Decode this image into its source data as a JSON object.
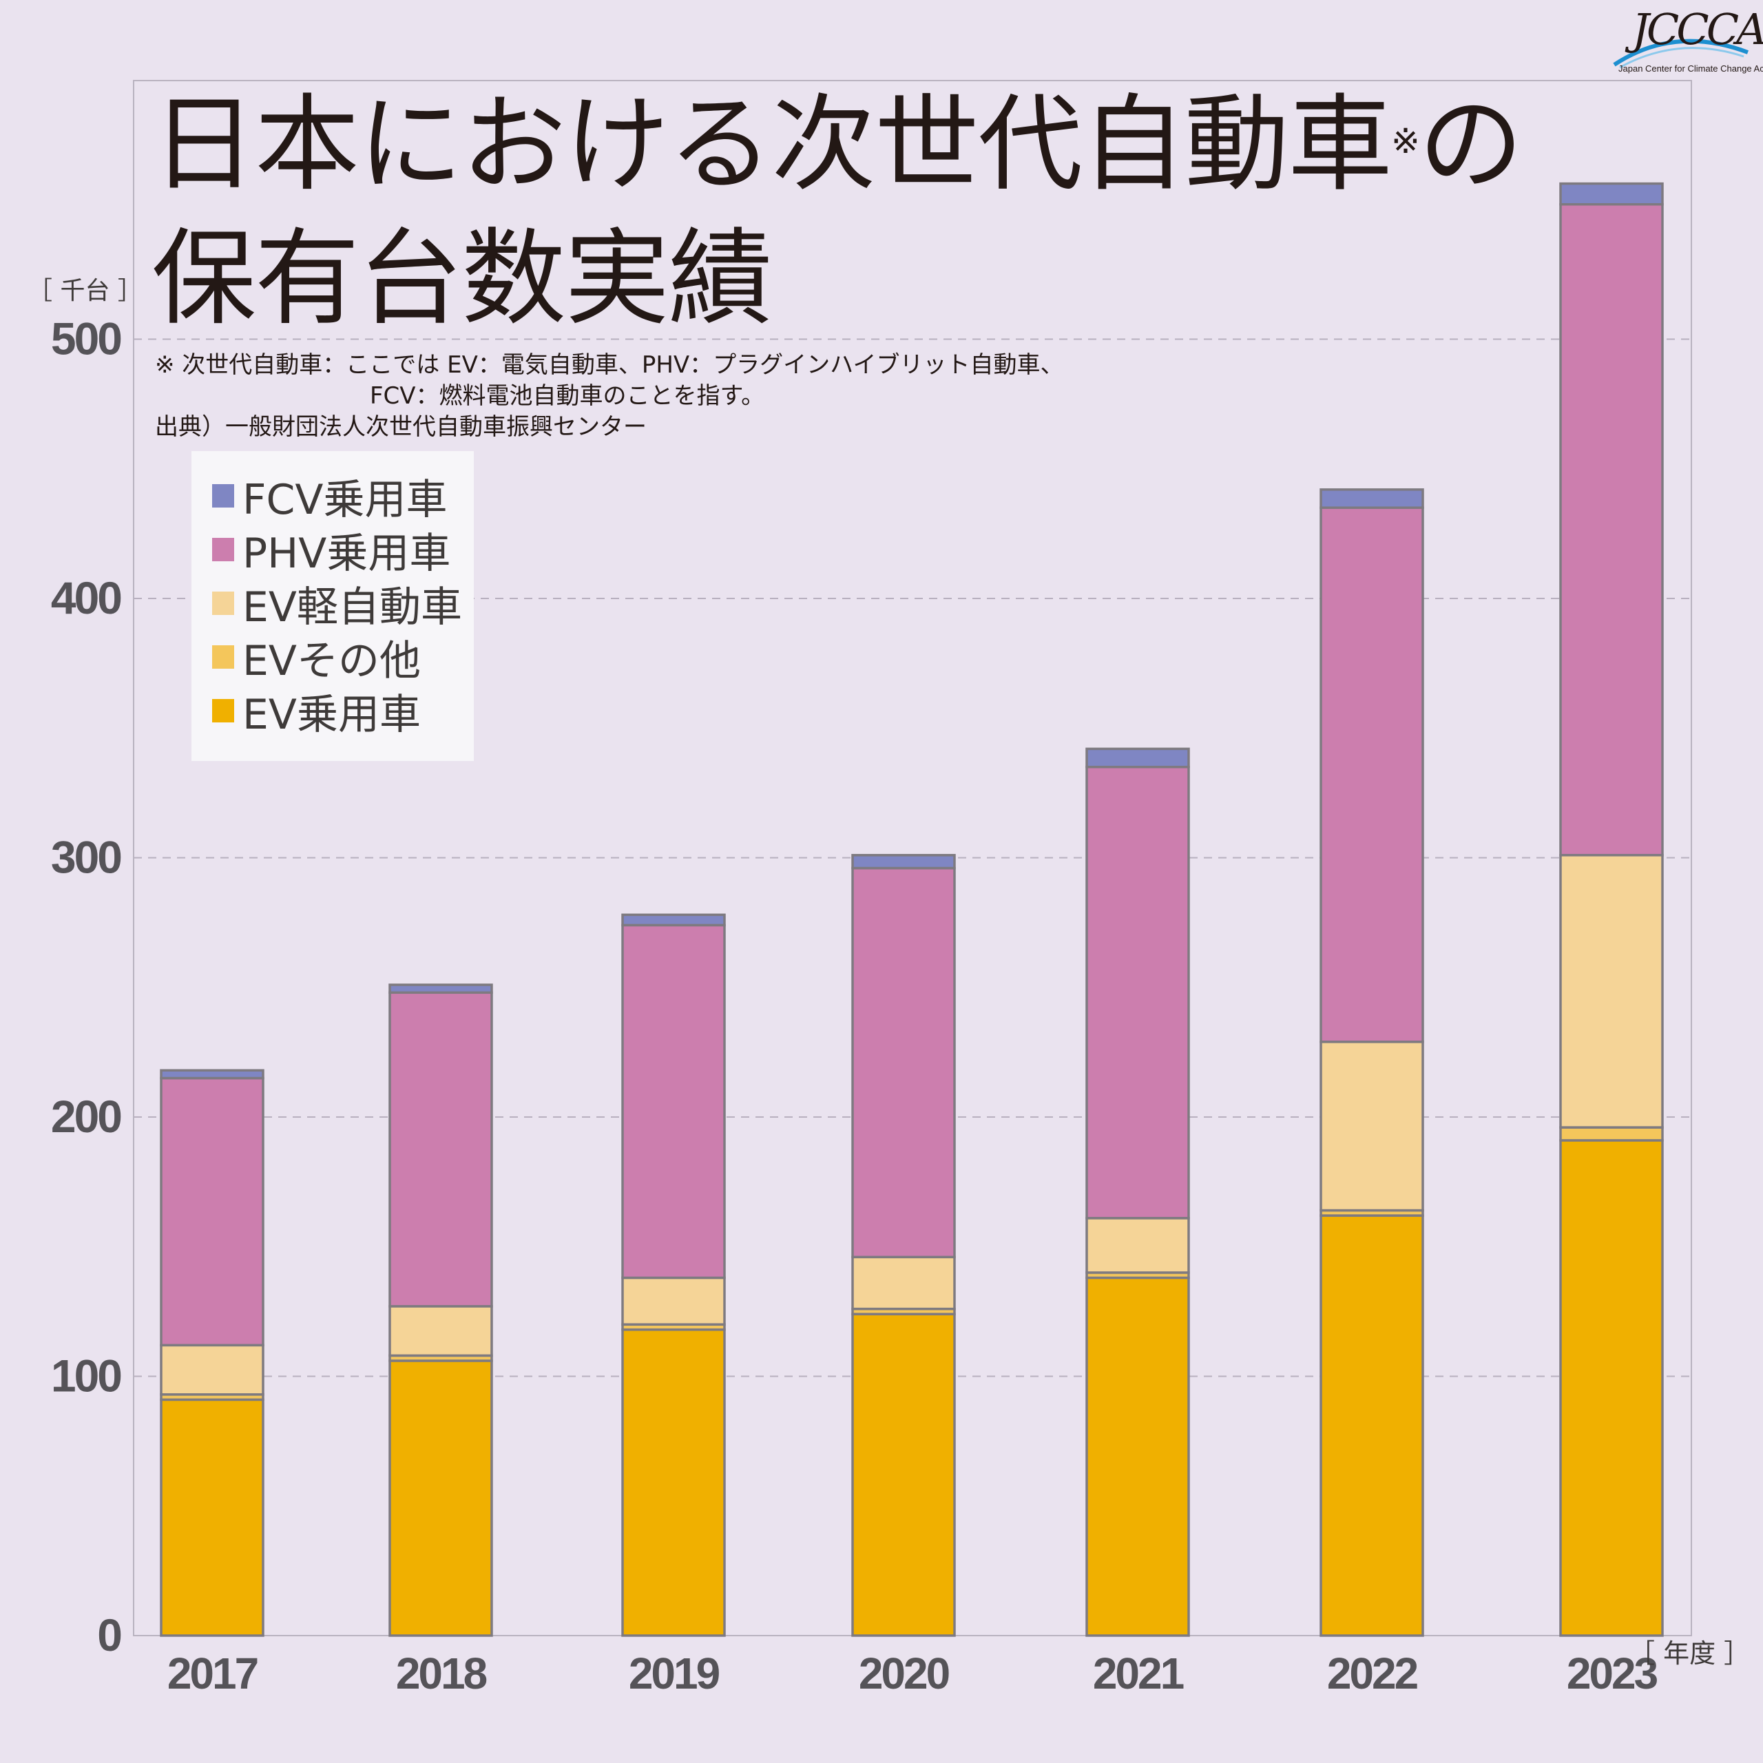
{
  "logo": {
    "text": "JCCCA",
    "subtitle": "Japan Center for Climate Change Actions"
  },
  "title": {
    "line1": "日本における次世代自動車",
    "mark": "※",
    "line1_suffix": "の",
    "line2": "保有台数実績"
  },
  "notes": {
    "line1": "※ 次世代自動車：ここでは EV：電気自動車、PHV：プラグインハイブリット自動車、",
    "line2": "FCV：燃料電池自動車のことを指す。",
    "source": "出典）一般財団法人次世代自動車振興センター"
  },
  "units": {
    "y": "［ 千台 ］",
    "x": "［ 年度 ］"
  },
  "chart_data": {
    "type": "bar",
    "stacked": true,
    "categories": [
      "2017",
      "2018",
      "2019",
      "2020",
      "2021",
      "2022",
      "2023"
    ],
    "series": [
      {
        "name": "EV乗用車",
        "color": "#f0b000",
        "values": [
          91,
          106,
          118,
          124,
          138,
          162,
          191
        ]
      },
      {
        "name": "EVその他",
        "color": "#f4c65b",
        "values": [
          2,
          2,
          2,
          2,
          2,
          2,
          5
        ]
      },
      {
        "name": "EV軽自動車",
        "color": "#f5d497",
        "values": [
          19,
          19,
          18,
          20,
          21,
          65,
          105
        ]
      },
      {
        "name": "PHV乗用車",
        "color": "#cc7eae",
        "values": [
          103,
          121,
          136,
          150,
          174,
          206,
          251
        ]
      },
      {
        "name": "FCV乗用車",
        "color": "#7f86c3",
        "values": [
          3,
          3,
          4,
          5,
          7,
          7,
          8
        ]
      }
    ],
    "legend_order": [
      "FCV乗用車",
      "PHV乗用車",
      "EV軽自動車",
      "EVその他",
      "EV乗用車"
    ],
    "ylim": [
      0,
      600
    ],
    "yticks": [
      0,
      100,
      200,
      300,
      400,
      500
    ],
    "ylabel": "千台",
    "xlabel": "年度",
    "grid": "horizontal dashed",
    "legend_position": "top-left"
  }
}
